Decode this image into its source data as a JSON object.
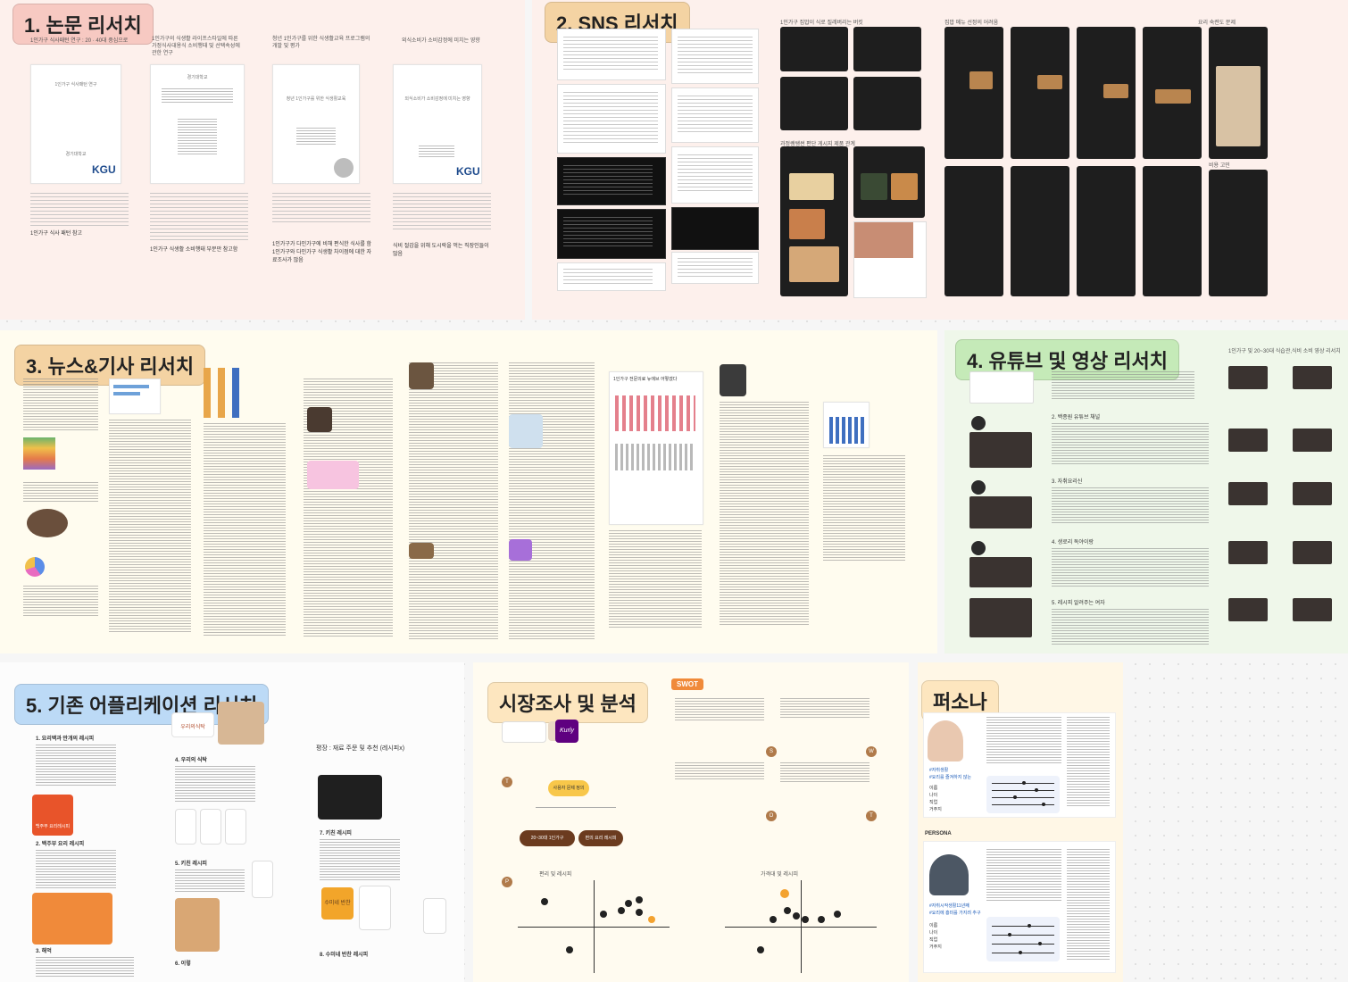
{
  "sections": {
    "papers": {
      "title": "1. 논문 리서치",
      "captions": [
        "1인가구 식사패턴 연구 : 20 · 40대 중심으로",
        "1인가구의 식생활 라이프스타일에 따른 가정식사대용식 소비행태 및 선택속성에 관한 연구",
        "청년 1인가구를 위한 식생활교육 프로그램의 개발 및 평가",
        "외식소비가 소비감정에 미치는 영향"
      ],
      "kgu": "KGU",
      "notes": [
        "1인가구 식사 패턴 참고",
        "1인가구 식생활 소비행태 부분만 참고함",
        "1인가구가 다인가구에 비해 편식한 식사를 함 1인가구와 다인가구 식생활 차이점에 대한 자료조사가 많음",
        "식비 절감을 위해 도시락을 먹는 직장인들이 많음"
      ],
      "cover_texts": [
        "1인가구 식사패턴 연구",
        "경기대학교",
        "1인가구의 식생활 라이프스타일에 따른 가정식사대용식",
        "청년 1인가구를 위한 식생활교육",
        "외식소비가 소비감정에 미치는 영향"
      ]
    },
    "sns": {
      "title": "2. SNS 리서치",
      "captions": [
        "1인가구 집밥이 식로 질레버리는 버킷",
        "집밥 메뉴 선정의 어려움",
        "요리 숙련도 문제",
        "과정쌩쌩썬 편단 게시지 제품 관계",
        "비용 고민"
      ]
    },
    "news": {
      "title": "3. 뉴스&기사 리서치",
      "headline_box": "1인가구 전문의료 뉴에브 어떻겠다"
    },
    "youtube": {
      "title": "4. 유튜브 및 영상 리서치",
      "right_caption": "1인가구 및 20~30대 식습관,식비 소비 영상 리서치",
      "channels": [
        {
          "name": "2. 백종원 유튜브 채널"
        },
        {
          "name": "3. 자취요리신"
        },
        {
          "name": "4. 생로리 독야이랑"
        },
        {
          "name": "5. 레시피 알려주는 여자"
        }
      ]
    },
    "apps": {
      "title": "5. 기존 어플리케이션 리서치",
      "focus": "평장 : 재료 주문 및 추천 (레시피x)",
      "items": [
        "1. 요리백과 만개의 레시피",
        "2. 백주부 요리 레시피",
        "3. 해먹",
        "4. 우리의 식탁",
        "5. 키친 레시피",
        "6. 이렇",
        "7. 키친 레시피",
        "8. 수미네 반찬 레시피"
      ],
      "logos": [
        "백주부 요리레시피",
        "우리의식탁",
        "만개의 레시피",
        "수미네 반찬"
      ]
    },
    "market": {
      "title": "시장조사 및 분석",
      "swot": "SWOT",
      "quadrants": [
        "S",
        "W",
        "O",
        "T"
      ],
      "kurly": "Kurly",
      "section_labels": [
        "T",
        "P"
      ],
      "flow_labels": [
        "사용자 문제 정의",
        "20~30대 1인가구",
        "편의 요리 레시피"
      ],
      "chart_titles": [
        "편리 및 레시피",
        "가격대 및 레시피"
      ]
    },
    "persona": {
      "title": "퍼소나",
      "heading": "PERSONA",
      "tags1": [
        "#자취생활",
        "#요리를 즐겨하지 않는"
      ],
      "tags2": [
        "#자취시작생활11년째",
        "#요리에 흥미를 가지려 추구"
      ],
      "fields": [
        "이름",
        "나이",
        "직업",
        "거주지"
      ]
    }
  },
  "colors": {
    "pink_tag": "#f7c9c2",
    "orange_tag": "#f4d3a3",
    "green_tag": "#c5eab8",
    "blue_tag": "#bcdaf6",
    "swot_orange": "#f08a3a",
    "flow_brown": "#6b3b1f"
  }
}
